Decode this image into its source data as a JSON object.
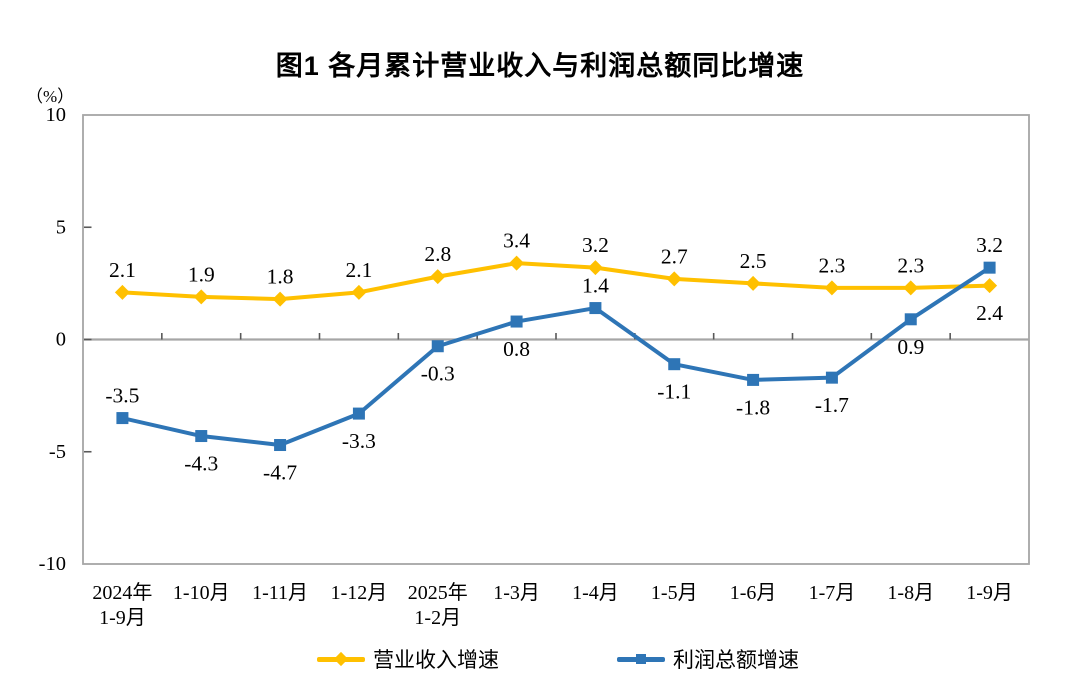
{
  "chart": {
    "title": "图1  各月累计营业收入与利润总额同比增速",
    "unit_label": "（%）"
  },
  "chart_data": {
    "type": "line",
    "title": "图1  各月累计营业收入与利润总额同比增速",
    "ylabel": "（%）",
    "xlabel": "",
    "ylim": [
      -10,
      10
    ],
    "yticks": [
      10,
      5,
      0,
      -5,
      -10
    ],
    "grid": false,
    "legend_position": "bottom",
    "categories": [
      [
        "2024年",
        "1-9月"
      ],
      [
        "1-10月"
      ],
      [
        "1-11月"
      ],
      [
        "1-12月"
      ],
      [
        "2025年",
        "1-2月"
      ],
      [
        "1-3月"
      ],
      [
        "1-4月"
      ],
      [
        "1-5月"
      ],
      [
        "1-6月"
      ],
      [
        "1-7月"
      ],
      [
        "1-8月"
      ],
      [
        "1-9月"
      ]
    ],
    "series": [
      {
        "name": "营业收入增速",
        "color": "#FFC000",
        "marker": "diamond",
        "values": [
          2.1,
          1.9,
          1.8,
          2.1,
          2.8,
          3.4,
          3.2,
          2.7,
          2.5,
          2.3,
          2.3,
          2.4
        ],
        "label_pos": [
          "above",
          "above",
          "above",
          "above",
          "above",
          "above",
          "above",
          "above",
          "above",
          "above",
          "above",
          "below"
        ]
      },
      {
        "name": "利润总额增速",
        "color": "#2E75B6",
        "marker": "square",
        "values": [
          -3.5,
          -4.3,
          -4.7,
          -3.3,
          -0.3,
          0.8,
          1.4,
          -1.1,
          -1.8,
          -1.7,
          0.9,
          3.2
        ],
        "label_pos": [
          "above",
          "below",
          "below",
          "below",
          "below",
          "below",
          "above",
          "below",
          "below",
          "below",
          "below",
          "above"
        ]
      }
    ],
    "axis_color": "#A6A6A6",
    "tick_color": "#595959",
    "label_color": "#000000"
  }
}
